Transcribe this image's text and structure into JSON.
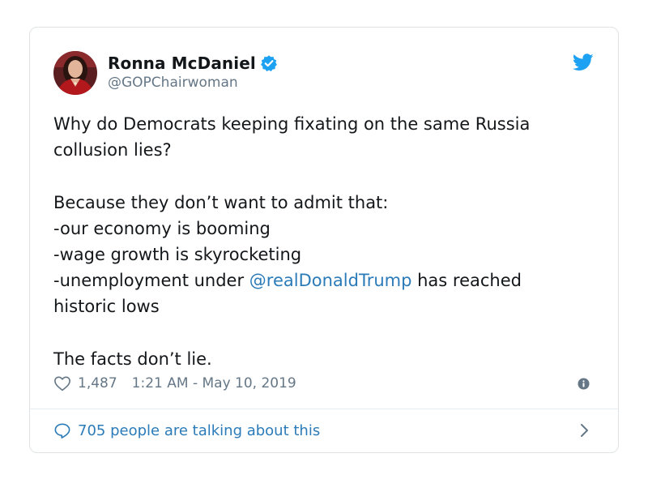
{
  "author": {
    "display_name": "Ronna McDaniel",
    "handle": "@GOPChairwoman",
    "verified": true,
    "avatar_icon": "profile-photo"
  },
  "tweet": {
    "line1": "Why do Democrats keeping fixating on the same Russia",
    "line2": "collusion lies?",
    "line3": "Because they don’t want to admit that:",
    "line4": "-our economy is booming",
    "line5": "-wage growth is skyrocketing",
    "line6_prefix": "-unemployment under ",
    "line6_mention": "@realDonaldTrump",
    "line6_suffix": " has reached",
    "line7": "historic lows",
    "line8": "The facts don’t lie."
  },
  "meta": {
    "like_count": "1,487",
    "timestamp": "1:21 AM - May 10, 2019"
  },
  "footer": {
    "talking_label": "705 people are talking about this"
  },
  "icons": {
    "brand": "twitter-bird-icon",
    "verified": "verified-badge-icon",
    "like": "heart-icon",
    "info": "info-icon",
    "reply": "speech-bubble-icon",
    "more": "chevron-right-icon"
  },
  "colors": {
    "twitter_blue": "#1da1f2",
    "link_blue": "#2b7bb9",
    "text": "#14171a",
    "muted": "#657786",
    "border": "#dfe3e6"
  }
}
